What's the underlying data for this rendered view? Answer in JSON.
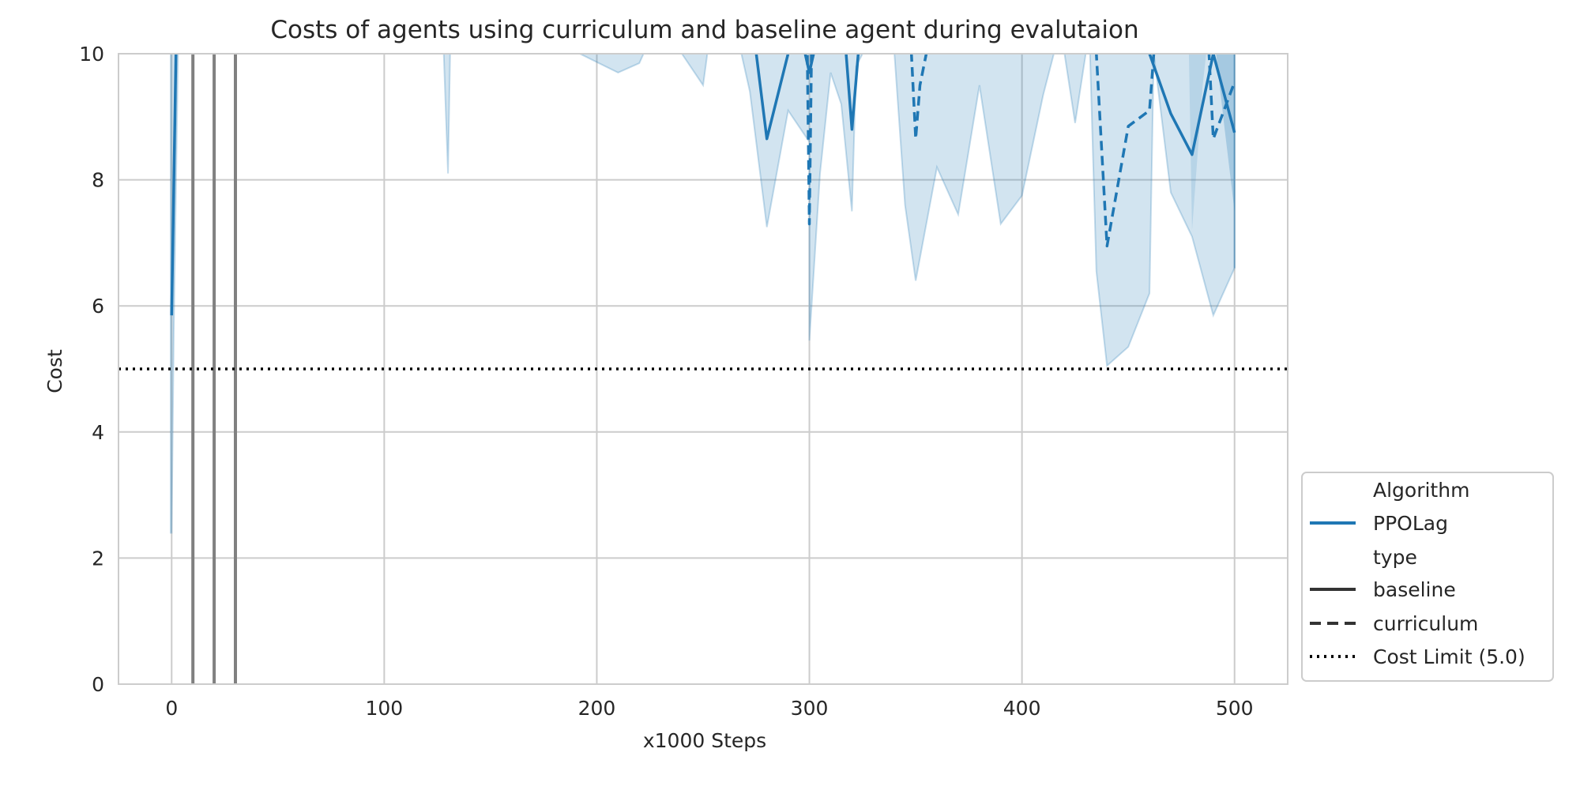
{
  "chart_data": {
    "type": "line",
    "title": "Costs of agents using curriculum and baseline agent during evalutaion",
    "xlabel": "x1000 Steps",
    "ylabel": "Cost",
    "xlim": [
      -25,
      525
    ],
    "ylim": [
      0,
      10
    ],
    "x_ticks": [
      0,
      100,
      200,
      300,
      400,
      500
    ],
    "y_ticks": [
      0,
      2,
      4,
      6,
      8,
      10
    ],
    "grid": true,
    "legend_position": "lower-right-outside",
    "colors": {
      "series": "#1f77b4",
      "band": "#1f77b4",
      "grid": "#cccccc",
      "vlines": "#808080",
      "limit": "#000000",
      "legend_black": "#333333"
    },
    "cost_limit": 5.0,
    "vertical_lines_x": [
      10,
      20,
      30
    ],
    "series": [
      {
        "name": "PPOLag",
        "type_label": "baseline",
        "style": "solid",
        "points": [
          [
            0,
            5.85
          ],
          [
            2,
            10.0
          ],
          [
            3,
            11
          ],
          [
            270,
            11
          ],
          [
            275,
            10.0
          ],
          [
            280,
            8.65
          ],
          [
            290,
            10.0
          ],
          [
            295,
            11
          ],
          [
            298,
            10.0
          ],
          [
            300,
            9.7
          ],
          [
            302,
            10.0
          ],
          [
            305,
            11
          ],
          [
            315,
            11
          ],
          [
            320,
            8.8
          ],
          [
            323,
            10.0
          ],
          [
            326,
            11
          ],
          [
            455,
            11
          ],
          [
            460,
            10.0
          ],
          [
            470,
            9.05
          ],
          [
            480,
            8.4
          ],
          [
            490,
            10.0
          ],
          [
            500,
            8.75
          ]
        ],
        "band": [
          [
            0,
            2.4,
            11
          ],
          [
            3,
            10.0,
            11
          ],
          [
            130,
            11,
            11
          ],
          [
            300,
            5.4,
            11
          ],
          [
            350,
            6.4,
            11
          ],
          [
            440,
            5.05,
            11
          ],
          [
            500,
            6.6,
            11
          ]
        ]
      },
      {
        "name": "PPOLag",
        "type_label": "curriculum",
        "style": "dashed",
        "points": [
          [
            270,
            11
          ],
          [
            296,
            11
          ],
          [
            299,
            10.0
          ],
          [
            300,
            7.3
          ],
          [
            301,
            10.0
          ],
          [
            302,
            11
          ],
          [
            345,
            11
          ],
          [
            348,
            10.0
          ],
          [
            350,
            8.65
          ],
          [
            352,
            9.5
          ],
          [
            355,
            10.0
          ],
          [
            358,
            11
          ],
          [
            430,
            11
          ],
          [
            435,
            10.0
          ],
          [
            440,
            6.95
          ],
          [
            450,
            8.85
          ],
          [
            460,
            9.1
          ],
          [
            462,
            10.0
          ],
          [
            485,
            11
          ],
          [
            488,
            10.0
          ],
          [
            490,
            8.65
          ],
          [
            495,
            9.1
          ],
          [
            500,
            9.55
          ]
        ]
      }
    ],
    "band_outline": [
      [
        127,
        11
      ],
      [
        128,
        10.0
      ],
      [
        130,
        8.1
      ],
      [
        131,
        10.0
      ],
      [
        132,
        11
      ],
      [
        210,
        9.7
      ],
      [
        220,
        9.85
      ],
      [
        222,
        10.0
      ],
      [
        240,
        10.0
      ],
      [
        250,
        9.5
      ],
      [
        252,
        10.0
      ],
      [
        268,
        10.0
      ],
      [
        272,
        9.4
      ],
      [
        280,
        7.25
      ],
      [
        290,
        9.1
      ],
      [
        300,
        8.6
      ],
      [
        300,
        5.45
      ],
      [
        305,
        8.1
      ],
      [
        310,
        9.7
      ],
      [
        315,
        9.2
      ],
      [
        320,
        7.5
      ],
      [
        322,
        9.8
      ],
      [
        325,
        10.0
      ],
      [
        340,
        10.0
      ],
      [
        345,
        7.6
      ],
      [
        350,
        6.4
      ],
      [
        360,
        8.2
      ],
      [
        370,
        7.45
      ],
      [
        380,
        9.5
      ],
      [
        390,
        7.3
      ],
      [
        400,
        7.75
      ],
      [
        410,
        9.35
      ],
      [
        415,
        10.0
      ],
      [
        420,
        10.0
      ],
      [
        425,
        8.9
      ],
      [
        430,
        10.0
      ],
      [
        432,
        10.0
      ],
      [
        435,
        6.55
      ],
      [
        440,
        5.05
      ],
      [
        450,
        5.35
      ],
      [
        460,
        6.2
      ],
      [
        462,
        10.0
      ],
      [
        470,
        7.8
      ],
      [
        480,
        7.1
      ],
      [
        490,
        5.85
      ],
      [
        500,
        6.6
      ]
    ],
    "legend": {
      "title_algorithm": "Algorithm",
      "algorithm_entry": "PPOLag",
      "title_type": "type",
      "type_baseline": "baseline",
      "type_curriculum": "curriculum",
      "cost_limit_entry": "Cost Limit (5.0)"
    }
  }
}
